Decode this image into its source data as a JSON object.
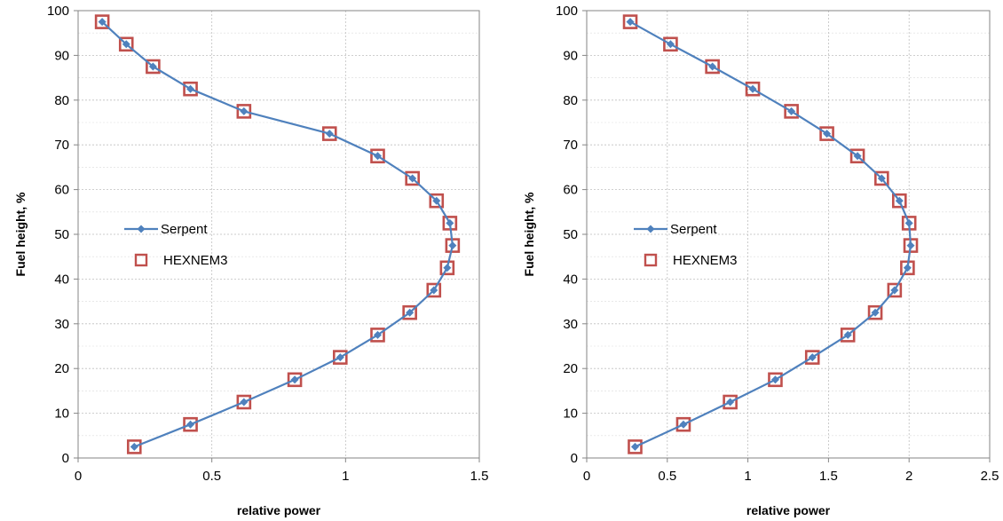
{
  "chart_data": [
    {
      "type": "line",
      "xlabel": "relative power",
      "ylabel": "Fuel height, %",
      "xlim": [
        0,
        1.5
      ],
      "ylim": [
        0,
        100
      ],
      "xticks": [
        "0",
        "0.5",
        "1",
        "1.5"
      ],
      "yticks": [
        "0",
        "10",
        "20",
        "30",
        "40",
        "50",
        "60",
        "70",
        "80",
        "90",
        "100"
      ],
      "grid": true,
      "legend_position": "middle-left",
      "series": [
        {
          "name": "Serpent",
          "marker": "diamond",
          "color": "#4F81BD",
          "points": [
            [
              0.21,
              2.5
            ],
            [
              0.42,
              7.5
            ],
            [
              0.62,
              12.5
            ],
            [
              0.81,
              17.5
            ],
            [
              0.98,
              22.5
            ],
            [
              1.12,
              27.5
            ],
            [
              1.24,
              32.5
            ],
            [
              1.33,
              37.5
            ],
            [
              1.38,
              42.5
            ],
            [
              1.4,
              47.5
            ],
            [
              1.39,
              52.5
            ],
            [
              1.34,
              57.5
            ],
            [
              1.25,
              62.5
            ],
            [
              1.12,
              67.5
            ],
            [
              0.94,
              72.5
            ],
            [
              0.62,
              77.5
            ],
            [
              0.42,
              82.5
            ],
            [
              0.28,
              87.5
            ],
            [
              0.18,
              92.5
            ],
            [
              0.09,
              97.5
            ]
          ]
        },
        {
          "name": "HEXNEM3",
          "marker": "open-square",
          "color": "#C0504D",
          "points": [
            [
              0.21,
              2.5
            ],
            [
              0.42,
              7.5
            ],
            [
              0.62,
              12.5
            ],
            [
              0.81,
              17.5
            ],
            [
              0.98,
              22.5
            ],
            [
              1.12,
              27.5
            ],
            [
              1.24,
              32.5
            ],
            [
              1.33,
              37.5
            ],
            [
              1.38,
              42.5
            ],
            [
              1.4,
              47.5
            ],
            [
              1.39,
              52.5
            ],
            [
              1.34,
              57.5
            ],
            [
              1.25,
              62.5
            ],
            [
              1.12,
              67.5
            ],
            [
              0.94,
              72.5
            ],
            [
              0.62,
              77.5
            ],
            [
              0.42,
              82.5
            ],
            [
              0.28,
              87.5
            ],
            [
              0.18,
              92.5
            ],
            [
              0.09,
              97.5
            ]
          ]
        }
      ]
    },
    {
      "type": "line",
      "xlabel": "relative power",
      "ylabel": "Fuel height, %",
      "xlim": [
        0,
        2.5
      ],
      "ylim": [
        0,
        100
      ],
      "xticks": [
        "0",
        "0.5",
        "1",
        "1.5",
        "2",
        "2.5"
      ],
      "yticks": [
        "0",
        "10",
        "20",
        "30",
        "40",
        "50",
        "60",
        "70",
        "80",
        "90",
        "100"
      ],
      "grid": true,
      "legend_position": "middle-left",
      "series": [
        {
          "name": "Serpent",
          "marker": "diamond",
          "color": "#4F81BD",
          "points": [
            [
              0.3,
              2.5
            ],
            [
              0.6,
              7.5
            ],
            [
              0.89,
              12.5
            ],
            [
              1.17,
              17.5
            ],
            [
              1.4,
              22.5
            ],
            [
              1.62,
              27.5
            ],
            [
              1.79,
              32.5
            ],
            [
              1.91,
              37.5
            ],
            [
              1.99,
              42.5
            ],
            [
              2.01,
              47.5
            ],
            [
              2.0,
              52.5
            ],
            [
              1.94,
              57.5
            ],
            [
              1.83,
              62.5
            ],
            [
              1.68,
              67.5
            ],
            [
              1.49,
              72.5
            ],
            [
              1.27,
              77.5
            ],
            [
              1.03,
              82.5
            ],
            [
              0.78,
              87.5
            ],
            [
              0.52,
              92.5
            ],
            [
              0.27,
              97.5
            ]
          ]
        },
        {
          "name": "HEXNEM3",
          "marker": "open-square",
          "color": "#C0504D",
          "points": [
            [
              0.3,
              2.5
            ],
            [
              0.6,
              7.5
            ],
            [
              0.89,
              12.5
            ],
            [
              1.17,
              17.5
            ],
            [
              1.4,
              22.5
            ],
            [
              1.62,
              27.5
            ],
            [
              1.79,
              32.5
            ],
            [
              1.91,
              37.5
            ],
            [
              1.99,
              42.5
            ],
            [
              2.01,
              47.5
            ],
            [
              2.0,
              52.5
            ],
            [
              1.94,
              57.5
            ],
            [
              1.83,
              62.5
            ],
            [
              1.68,
              67.5
            ],
            [
              1.49,
              72.5
            ],
            [
              1.27,
              77.5
            ],
            [
              1.03,
              82.5
            ],
            [
              0.78,
              87.5
            ],
            [
              0.52,
              92.5
            ],
            [
              0.27,
              97.5
            ]
          ]
        }
      ]
    }
  ]
}
